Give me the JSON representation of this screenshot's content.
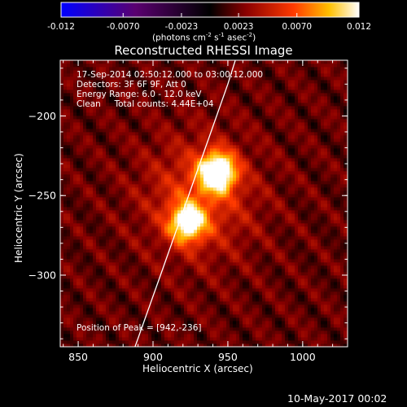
{
  "colorbar": {
    "ticks": [
      "-0.012",
      "-0.0070",
      "-0.0023",
      "0.0023",
      "0.0070",
      "0.012"
    ],
    "tick_values": [
      -0.012,
      -0.007,
      -0.0023,
      0.0023,
      0.007,
      0.012
    ],
    "units_prefix": "(photons cm",
    "units_exp1": "-2",
    "units_mid": " s",
    "units_exp2": "-1",
    "units_mid2": " asec",
    "units_exp3": "-2",
    "units_suffix": ")"
  },
  "chart_data": {
    "type": "heatmap",
    "title": "Reconstructed RHESSI Image",
    "xlabel": "Heliocentric X (arcsec)",
    "ylabel": "Heliocentric Y (arcsec)",
    "xlim": [
      838,
      1030
    ],
    "ylim": [
      -345,
      -165
    ],
    "xticks": [
      850,
      900,
      950,
      1000
    ],
    "yticks": [
      -200,
      -250,
      -300
    ],
    "colormap": "blue-purple-red-yellow-white",
    "vrange": [
      -0.012,
      0.012
    ],
    "peak": {
      "x": 942,
      "y": -236
    },
    "sources": [
      {
        "x": 942,
        "y": -236,
        "amplitude": 0.012
      },
      {
        "x": 922,
        "y": -268,
        "amplitude": 0.0095
      }
    ],
    "limb_curve": [
      {
        "x": 888,
        "y": -345
      },
      {
        "x": 905,
        "y": -300
      },
      {
        "x": 920,
        "y": -260
      },
      {
        "x": 935,
        "y": -220
      },
      {
        "x": 950,
        "y": -180
      },
      {
        "x": 955,
        "y": -165
      }
    ]
  },
  "annotations": {
    "line1": "17-Sep-2014 02:50:12.000 to 03:00:12.000",
    "line2": "Detectors: 3F 6F 9F, Att 0",
    "line3": "Energy Range: 6.0 - 12.0 keV",
    "line4": "Clean     Total counts: 4.44E+04",
    "peak_label": "Position of Peak = [942,-236]"
  },
  "footer": {
    "timestamp": "10-May-2017 00:02"
  }
}
